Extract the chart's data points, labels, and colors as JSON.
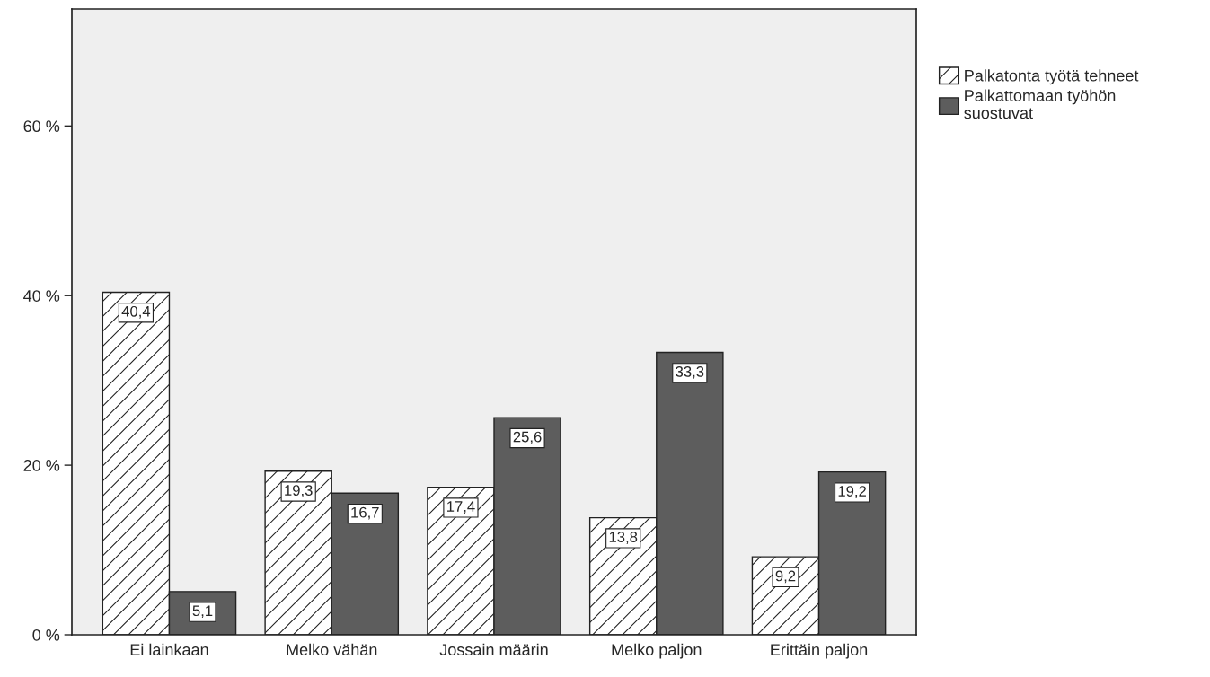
{
  "chart_data": {
    "type": "bar",
    "categories": [
      "Ei lainkaan",
      "Melko vähän",
      "Jossain määrin",
      "Melko paljon",
      "Erittäin paljon"
    ],
    "series": [
      {
        "name": "Palkatonta työtä tehneet",
        "color": "#ffffff",
        "values": [
          40.4,
          19.3,
          17.4,
          13.8,
          9.2
        ],
        "value_labels": [
          "40,4",
          "19,3",
          "17,4",
          "13,8",
          "9,2"
        ]
      },
      {
        "name": "Palkattomaan työhön\nsuostuvat",
        "color": "#5d5d5d",
        "values": [
          5.1,
          16.7,
          25.6,
          33.3,
          19.2
        ],
        "value_labels": [
          "5,1",
          "16,7",
          "25,6",
          "33,3",
          "19,2"
        ]
      }
    ],
    "ylim": [
      0,
      73.8
    ],
    "yticks": [
      {
        "value": 0,
        "label": "0 %"
      },
      {
        "value": 20,
        "label": "20 %"
      },
      {
        "value": 40,
        "label": "40 %"
      },
      {
        "value": 60,
        "label": "60 %"
      }
    ],
    "legend": "right",
    "grid": false
  }
}
